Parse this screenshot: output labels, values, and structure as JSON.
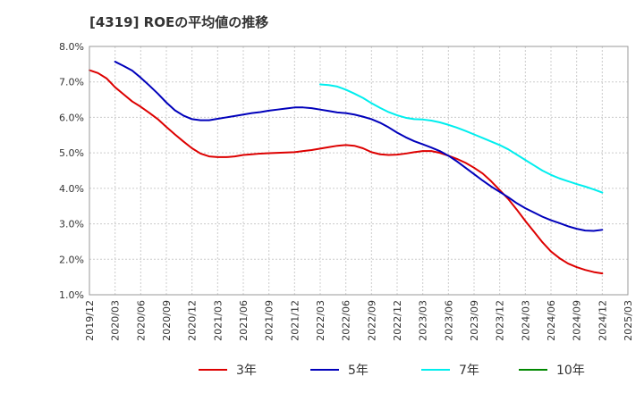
{
  "chart_data": {
    "type": "line",
    "title": "[4319]  ROEの平均値の推移",
    "xlabel": "",
    "ylabel": "",
    "ylim": [
      1.0,
      8.0
    ],
    "x_ticks": [
      "2019/12",
      "2020/03",
      "2020/06",
      "2020/09",
      "2020/12",
      "2021/03",
      "2021/06",
      "2021/09",
      "2021/12",
      "2022/03",
      "2022/06",
      "2022/09",
      "2022/12",
      "2023/03",
      "2023/06",
      "2023/09",
      "2023/12",
      "2024/03",
      "2024/06",
      "2024/09",
      "2024/12",
      "2025/03"
    ],
    "y_ticks": [
      "1.0%",
      "2.0%",
      "3.0%",
      "4.0%",
      "5.0%",
      "6.0%",
      "7.0%",
      "8.0%"
    ],
    "y_tick_values": [
      1.0,
      2.0,
      3.0,
      4.0,
      5.0,
      6.0,
      7.0,
      8.0
    ],
    "grid": true,
    "legend_position": "bottom",
    "series": [
      {
        "name": "3年",
        "color": "#dd0000",
        "points": [
          [
            "2019/12",
            7.33
          ],
          [
            "2020/01",
            7.25
          ],
          [
            "2020/02",
            7.1
          ],
          [
            "2020/03",
            6.85
          ],
          [
            "2020/04",
            6.65
          ],
          [
            "2020/05",
            6.45
          ],
          [
            "2020/06",
            6.3
          ],
          [
            "2020/07",
            6.13
          ],
          [
            "2020/08",
            5.95
          ],
          [
            "2020/09",
            5.73
          ],
          [
            "2020/10",
            5.52
          ],
          [
            "2020/11",
            5.32
          ],
          [
            "2020/12",
            5.13
          ],
          [
            "2021/01",
            4.98
          ],
          [
            "2021/02",
            4.9
          ],
          [
            "2021/03",
            4.88
          ],
          [
            "2021/04",
            4.88
          ],
          [
            "2021/05",
            4.9
          ],
          [
            "2021/06",
            4.94
          ],
          [
            "2021/07",
            4.96
          ],
          [
            "2021/08",
            4.98
          ],
          [
            "2021/09",
            4.99
          ],
          [
            "2021/10",
            5.0
          ],
          [
            "2021/11",
            5.01
          ],
          [
            "2021/12",
            5.02
          ],
          [
            "2022/01",
            5.05
          ],
          [
            "2022/02",
            5.08
          ],
          [
            "2022/03",
            5.12
          ],
          [
            "2022/04",
            5.16
          ],
          [
            "2022/05",
            5.2
          ],
          [
            "2022/06",
            5.22
          ],
          [
            "2022/07",
            5.2
          ],
          [
            "2022/08",
            5.13
          ],
          [
            "2022/09",
            5.02
          ],
          [
            "2022/10",
            4.96
          ],
          [
            "2022/11",
            4.94
          ],
          [
            "2022/12",
            4.95
          ],
          [
            "2023/01",
            4.98
          ],
          [
            "2023/02",
            5.02
          ],
          [
            "2023/03",
            5.05
          ],
          [
            "2023/04",
            5.05
          ],
          [
            "2023/05",
            5.0
          ],
          [
            "2023/06",
            4.92
          ],
          [
            "2023/07",
            4.83
          ],
          [
            "2023/08",
            4.72
          ],
          [
            "2023/09",
            4.58
          ],
          [
            "2023/10",
            4.42
          ],
          [
            "2023/11",
            4.2
          ],
          [
            "2023/12",
            3.95
          ],
          [
            "2024/01",
            3.7
          ],
          [
            "2024/02",
            3.4
          ],
          [
            "2024/03",
            3.08
          ],
          [
            "2024/04",
            2.78
          ],
          [
            "2024/05",
            2.48
          ],
          [
            "2024/06",
            2.22
          ],
          [
            "2024/07",
            2.03
          ],
          [
            "2024/08",
            1.88
          ],
          [
            "2024/09",
            1.78
          ],
          [
            "2024/10",
            1.7
          ],
          [
            "2024/11",
            1.64
          ],
          [
            "2024/12",
            1.6
          ]
        ]
      },
      {
        "name": "5年",
        "color": "#0000bb",
        "points": [
          [
            "2020/03",
            7.57
          ],
          [
            "2020/04",
            7.45
          ],
          [
            "2020/05",
            7.32
          ],
          [
            "2020/06",
            7.12
          ],
          [
            "2020/07",
            6.9
          ],
          [
            "2020/08",
            6.67
          ],
          [
            "2020/09",
            6.42
          ],
          [
            "2020/10",
            6.2
          ],
          [
            "2020/11",
            6.05
          ],
          [
            "2020/12",
            5.95
          ],
          [
            "2021/01",
            5.92
          ],
          [
            "2021/02",
            5.92
          ],
          [
            "2021/03",
            5.96
          ],
          [
            "2021/04",
            6.0
          ],
          [
            "2021/05",
            6.04
          ],
          [
            "2021/06",
            6.08
          ],
          [
            "2021/07",
            6.12
          ],
          [
            "2021/08",
            6.15
          ],
          [
            "2021/09",
            6.19
          ],
          [
            "2021/10",
            6.22
          ],
          [
            "2021/11",
            6.25
          ],
          [
            "2021/12",
            6.28
          ],
          [
            "2022/01",
            6.28
          ],
          [
            "2022/02",
            6.26
          ],
          [
            "2022/03",
            6.22
          ],
          [
            "2022/04",
            6.18
          ],
          [
            "2022/05",
            6.14
          ],
          [
            "2022/06",
            6.12
          ],
          [
            "2022/07",
            6.08
          ],
          [
            "2022/08",
            6.02
          ],
          [
            "2022/09",
            5.95
          ],
          [
            "2022/10",
            5.85
          ],
          [
            "2022/11",
            5.72
          ],
          [
            "2022/12",
            5.57
          ],
          [
            "2023/01",
            5.44
          ],
          [
            "2023/02",
            5.33
          ],
          [
            "2023/03",
            5.24
          ],
          [
            "2023/04",
            5.15
          ],
          [
            "2023/05",
            5.05
          ],
          [
            "2023/06",
            4.92
          ],
          [
            "2023/07",
            4.76
          ],
          [
            "2023/08",
            4.58
          ],
          [
            "2023/09",
            4.4
          ],
          [
            "2023/10",
            4.22
          ],
          [
            "2023/11",
            4.05
          ],
          [
            "2023/12",
            3.9
          ],
          [
            "2024/01",
            3.75
          ],
          [
            "2024/02",
            3.58
          ],
          [
            "2024/03",
            3.44
          ],
          [
            "2024/04",
            3.32
          ],
          [
            "2024/05",
            3.2
          ],
          [
            "2024/06",
            3.1
          ],
          [
            "2024/07",
            3.02
          ],
          [
            "2024/08",
            2.93
          ],
          [
            "2024/09",
            2.86
          ],
          [
            "2024/10",
            2.81
          ],
          [
            "2024/11",
            2.8
          ],
          [
            "2024/12",
            2.83
          ]
        ]
      },
      {
        "name": "7年",
        "color": "#00eeee",
        "points": [
          [
            "2022/03",
            6.93
          ],
          [
            "2022/04",
            6.91
          ],
          [
            "2022/05",
            6.87
          ],
          [
            "2022/06",
            6.78
          ],
          [
            "2022/07",
            6.67
          ],
          [
            "2022/08",
            6.55
          ],
          [
            "2022/09",
            6.4
          ],
          [
            "2022/10",
            6.27
          ],
          [
            "2022/11",
            6.15
          ],
          [
            "2022/12",
            6.06
          ],
          [
            "2023/01",
            5.99
          ],
          [
            "2023/02",
            5.95
          ],
          [
            "2023/03",
            5.94
          ],
          [
            "2023/04",
            5.91
          ],
          [
            "2023/05",
            5.86
          ],
          [
            "2023/06",
            5.79
          ],
          [
            "2023/07",
            5.71
          ],
          [
            "2023/08",
            5.62
          ],
          [
            "2023/09",
            5.52
          ],
          [
            "2023/10",
            5.42
          ],
          [
            "2023/11",
            5.32
          ],
          [
            "2023/12",
            5.22
          ],
          [
            "2024/01",
            5.1
          ],
          [
            "2024/02",
            4.95
          ],
          [
            "2024/03",
            4.8
          ],
          [
            "2024/04",
            4.65
          ],
          [
            "2024/05",
            4.5
          ],
          [
            "2024/06",
            4.38
          ],
          [
            "2024/07",
            4.28
          ],
          [
            "2024/08",
            4.2
          ],
          [
            "2024/09",
            4.12
          ],
          [
            "2024/10",
            4.05
          ],
          [
            "2024/11",
            3.97
          ],
          [
            "2024/12",
            3.88
          ]
        ]
      },
      {
        "name": "10年",
        "color": "#008800",
        "points": []
      }
    ]
  }
}
